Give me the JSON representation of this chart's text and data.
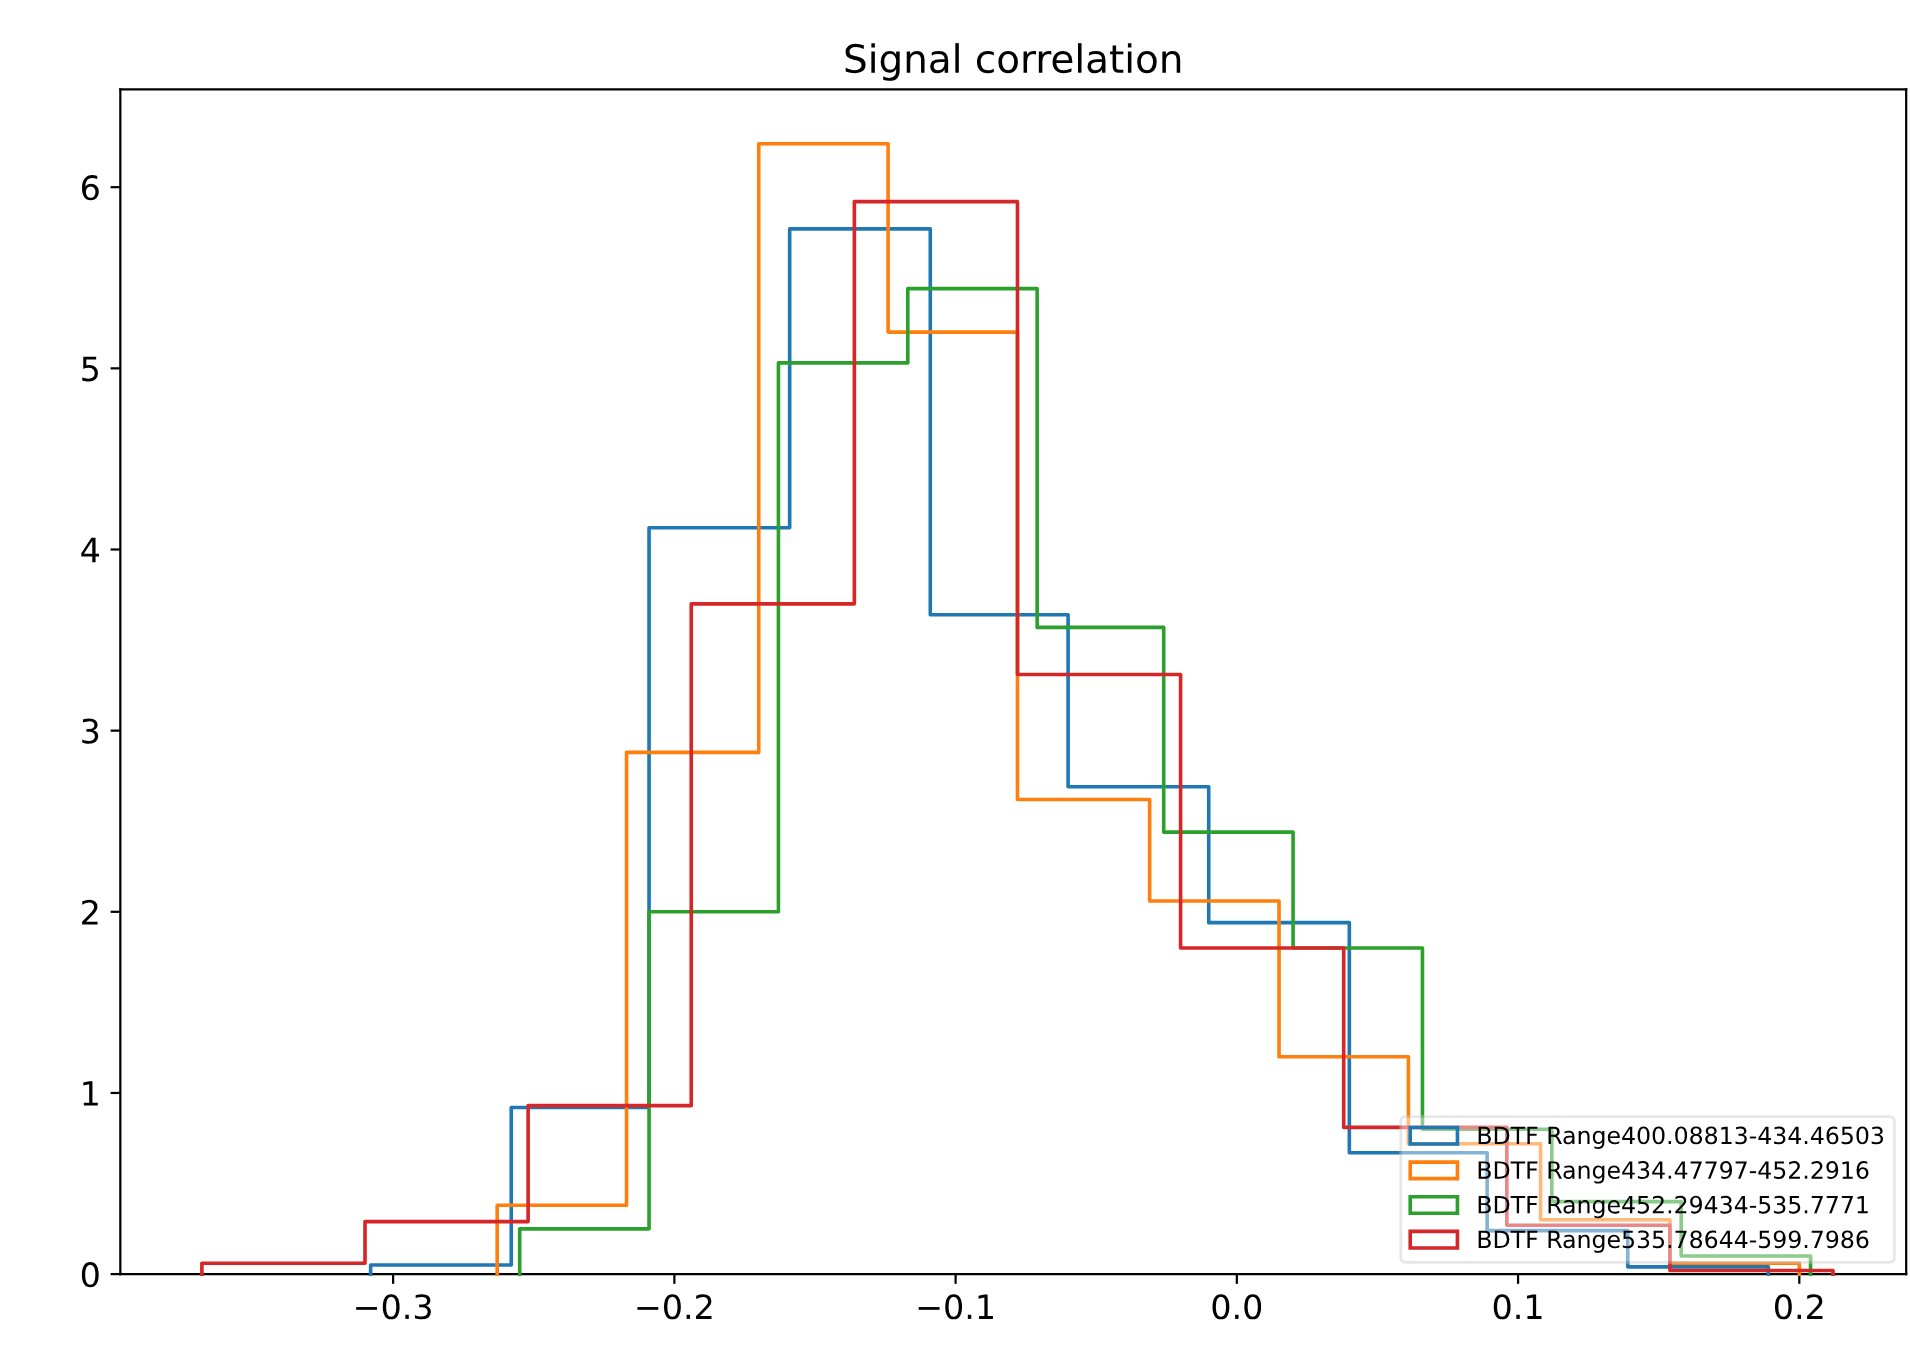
{
  "chart_data": {
    "type": "step",
    "title": "Signal correlation",
    "series": [
      {
        "name": "BDTF Range400.08813-434.46503",
        "color": "#1f77b4",
        "x": [
          -0.308,
          -0.308,
          -0.258,
          -0.209,
          -0.159,
          -0.109,
          -0.06,
          -0.01,
          0.04,
          0.089,
          0.139,
          0.189
        ],
        "values": [
          0,
          0.05,
          0.92,
          4.12,
          5.77,
          3.64,
          2.69,
          1.94,
          0.67,
          0.24,
          0.04,
          0
        ]
      },
      {
        "name": "BDTF Range434.47797-452.2916",
        "color": "#ff7f0e",
        "x": [
          -0.263,
          -0.263,
          -0.217,
          -0.17,
          -0.124,
          -0.078,
          -0.031,
          0.015,
          0.061,
          0.108,
          0.154,
          0.2
        ],
        "values": [
          0,
          0.38,
          2.88,
          6.24,
          5.2,
          2.62,
          2.06,
          1.2,
          0.72,
          0.3,
          0.06,
          0
        ]
      },
      {
        "name": "BDTF Range452.29434-535.7771",
        "color": "#2ca02c",
        "x": [
          -0.255,
          -0.255,
          -0.209,
          -0.163,
          -0.117,
          -0.071,
          -0.026,
          0.02,
          0.066,
          0.112,
          0.158,
          0.204
        ],
        "values": [
          0,
          0.25,
          2.0,
          5.03,
          5.44,
          3.57,
          2.44,
          1.8,
          0.8,
          0.4,
          0.1,
          0
        ]
      },
      {
        "name": "BDTF Range535.78644-599.7986",
        "color": "#d62728",
        "x": [
          -0.368,
          -0.368,
          -0.31,
          -0.252,
          -0.194,
          -0.136,
          -0.078,
          -0.02,
          0.038,
          0.096,
          0.154,
          0.212
        ],
        "values": [
          0,
          0.06,
          0.29,
          0.93,
          3.7,
          5.92,
          3.31,
          1.8,
          0.81,
          0.27,
          0.02,
          0
        ]
      }
    ],
    "xlim": [
      -0.397,
      0.238
    ],
    "ylim": [
      0,
      6.54
    ],
    "xticks": [
      {
        "value": -0.3,
        "label": "−0.3"
      },
      {
        "value": -0.2,
        "label": "−0.2"
      },
      {
        "value": -0.1,
        "label": "−0.1"
      },
      {
        "value": 0.0,
        "label": "0.0"
      },
      {
        "value": 0.1,
        "label": "0.1"
      },
      {
        "value": 0.2,
        "label": "0.2"
      }
    ],
    "yticks": [
      0,
      1,
      2,
      3,
      4,
      5,
      6
    ],
    "legend": "bottom right",
    "grid": false
  }
}
